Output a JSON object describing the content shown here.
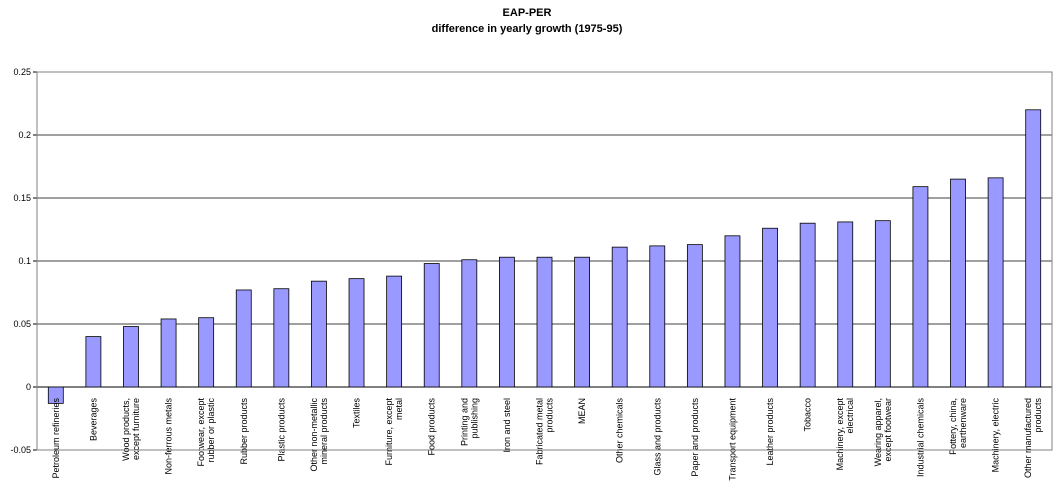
{
  "chart_data": {
    "type": "bar",
    "title": "EAP-PER",
    "subtitle": "difference in yearly growth (1975-95)",
    "xlabel": "",
    "ylabel": "",
    "ylim": [
      -0.05,
      0.25
    ],
    "yticks": [
      "0.25",
      "0.2",
      "0.15",
      "0.1",
      "0.05",
      "0",
      "-0.05"
    ],
    "ytick_values": [
      0.25,
      0.2,
      0.15,
      0.1,
      0.05,
      0,
      -0.05
    ],
    "grid": true,
    "legend": "none",
    "bar_color": "#9999ff",
    "categories": [
      "Petroleum refineries",
      "Beverages",
      "Wood products, except furniture",
      "Non-ferrous metals",
      "Footwear, except rubber or plastic",
      "Rubber products",
      "Plastic products",
      "Other non-metallic mineral products",
      "Textiles",
      "Furniture, except metal",
      "Food products",
      "Printing and publishing",
      "Iron and steel",
      "Fabricated metal products",
      "MEAN",
      "Other chemicals",
      "Glass and products",
      "Paper and products",
      "Transport equipment",
      "Leather products",
      "Tobacco",
      "Machinery, except electrical",
      "Wearing apparel, except footwear",
      "Industrial chemicals",
      "Pottery, china, earthenware",
      "Machinery, electric",
      "Other manufactured products"
    ],
    "category_lines": [
      [
        "Petroleum refineries"
      ],
      [
        "Beverages"
      ],
      [
        "Wood products,",
        "except furniture"
      ],
      [
        "Non-ferrous metals"
      ],
      [
        "Footwear, except",
        "rubber or plastic"
      ],
      [
        "Rubber products"
      ],
      [
        "Plastic products"
      ],
      [
        "Other non-metallic",
        "mineral products"
      ],
      [
        "Textiles"
      ],
      [
        "Furniture, except",
        "metal"
      ],
      [
        "Food products"
      ],
      [
        "Printing and",
        "publishing"
      ],
      [
        "Iron and steel"
      ],
      [
        "Fabricated metal",
        "products"
      ],
      [
        "MEAN"
      ],
      [
        "Other chemicals"
      ],
      [
        "Glass and products"
      ],
      [
        "Paper and products"
      ],
      [
        "Transport equipment"
      ],
      [
        "Leather products"
      ],
      [
        "Tobacco"
      ],
      [
        "Machinery, except",
        "electrical"
      ],
      [
        "Wearing apparel,",
        "except footwear"
      ],
      [
        "Industrial chemicals"
      ],
      [
        "Pottery, china,",
        "earthenware"
      ],
      [
        "Machinery, electric"
      ],
      [
        "Other manufactured",
        "products"
      ]
    ],
    "values": [
      -0.013,
      0.04,
      0.048,
      0.054,
      0.055,
      0.077,
      0.078,
      0.084,
      0.086,
      0.088,
      0.098,
      0.101,
      0.103,
      0.103,
      0.103,
      0.111,
      0.112,
      0.113,
      0.12,
      0.126,
      0.13,
      0.131,
      0.132,
      0.159,
      0.165,
      0.166,
      0.22
    ]
  }
}
